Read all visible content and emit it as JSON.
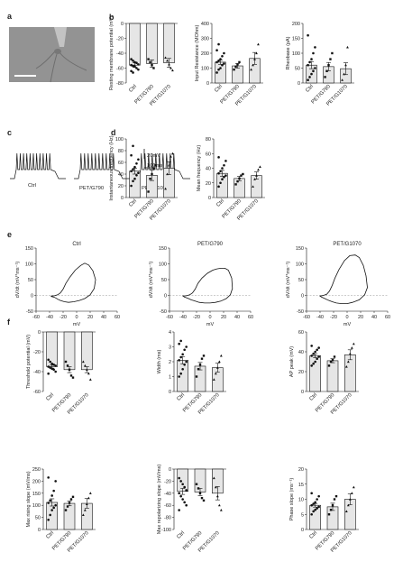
{
  "panel_labels": [
    "a",
    "b",
    "c",
    "d",
    "e",
    "f"
  ],
  "groups": [
    "Ctrl",
    "PET/G790",
    "PET/G1070"
  ],
  "colors": {
    "bar_fill": "#e6e6e6",
    "stroke": "#111111",
    "micrograph": "#8a8a8a"
  },
  "panel_c": {
    "scale_voltage": "20mV",
    "scale_time": "100ms",
    "trace_labels": [
      "Ctrl",
      "PET/G790",
      "PET/G1070"
    ],
    "spike_counts": [
      11,
      10,
      10
    ]
  },
  "chart_data": [
    {
      "id": "b1",
      "panel": "b",
      "type": "bar",
      "categories": [
        "Ctrl",
        "PET/G790",
        "PET/G1070"
      ],
      "ylabel": "Resting membrane potential (mV)",
      "ylim": [
        -80,
        0
      ],
      "yticks": [
        0,
        -20,
        -40,
        -60,
        -80
      ],
      "ytick_labels": [
        "0",
        "-20",
        "-40",
        "-60",
        "-80"
      ],
      "values": [
        -56,
        -54,
        -53
      ],
      "sem": [
        3,
        5,
        6
      ],
      "points": [
        [
          -48,
          -50,
          -52,
          -53,
          -55,
          -56,
          -57,
          -58,
          -60,
          -62,
          -64,
          -66
        ],
        [
          -48,
          -52,
          -56,
          -60
        ],
        [
          -46,
          -50,
          -55,
          -60,
          -63
        ]
      ]
    },
    {
      "id": "b2",
      "panel": "b",
      "type": "bar",
      "categories": [
        "Ctrl",
        "PET/G790",
        "PET/G1070"
      ],
      "ylabel": "Input Resistance (MOhm)",
      "ylim": [
        0,
        400
      ],
      "yticks": [
        0,
        100,
        200,
        300,
        400
      ],
      "ytick_labels": [
        "0",
        "100",
        "200",
        "300",
        "400"
      ],
      "values": [
        140,
        115,
        165
      ],
      "sem": [
        15,
        15,
        40
      ],
      "points": [
        [
          70,
          90,
          100,
          120,
          130,
          140,
          150,
          160,
          180,
          200,
          220,
          260
        ],
        [
          90,
          110,
          125,
          140
        ],
        [
          90,
          120,
          160,
          200,
          260
        ]
      ]
    },
    {
      "id": "b3",
      "panel": "b",
      "type": "bar",
      "categories": [
        "Ctrl",
        "PET/G790",
        "PET/G1070"
      ],
      "ylabel": "Rheobase (pA)",
      "ylim": [
        0,
        200
      ],
      "yticks": [
        0,
        50,
        100,
        150,
        200
      ],
      "ytick_labels": [
        "0",
        "50",
        "100",
        "150",
        "200"
      ],
      "values": [
        60,
        55,
        48
      ],
      "sem": [
        12,
        14,
        20
      ],
      "points": [
        [
          10,
          20,
          30,
          40,
          50,
          60,
          70,
          80,
          100,
          120,
          160
        ],
        [
          20,
          40,
          60,
          80,
          100
        ],
        [
          10,
          30,
          60,
          120
        ]
      ]
    },
    {
      "id": "d1",
      "panel": "d",
      "type": "bar",
      "categories": [
        "Ctrl",
        "PET/G790",
        "PET/G1070"
      ],
      "ylabel": "Instantaneous frequency (Hz)",
      "ylim": [
        0,
        100
      ],
      "yticks": [
        0,
        20,
        40,
        60,
        80,
        100
      ],
      "ytick_labels": [
        "0",
        "20",
        "40",
        "60",
        "80",
        "100"
      ],
      "values": [
        45,
        38,
        50
      ],
      "sem": [
        5,
        9,
        11
      ],
      "points": [
        [
          20,
          28,
          32,
          38,
          42,
          45,
          48,
          52,
          58,
          65,
          72,
          88
        ],
        [
          10,
          32,
          40,
          50,
          55
        ],
        [
          15,
          40,
          55,
          70,
          75
        ]
      ]
    },
    {
      "id": "d2",
      "panel": "d",
      "type": "bar",
      "categories": [
        "Ctrl",
        "PET/G790",
        "PET/G1070"
      ],
      "ylabel": "Mean frequency (Hz)",
      "ylim": [
        0,
        80
      ],
      "yticks": [
        0,
        20,
        40,
        60,
        80
      ],
      "ytick_labels": [
        "0",
        "20",
        "40",
        "60",
        "80"
      ],
      "values": [
        33,
        26,
        30
      ],
      "sem": [
        4,
        3,
        5
      ],
      "points": [
        [
          15,
          20,
          25,
          28,
          30,
          33,
          36,
          40,
          44,
          50,
          55
        ],
        [
          18,
          22,
          26,
          30,
          32
        ],
        [
          15,
          25,
          30,
          38,
          42
        ]
      ]
    },
    {
      "id": "e1",
      "panel": "e",
      "type": "line",
      "title": "Ctrl",
      "xlabel": "mV",
      "ylabel": "dV/dt (mV*ms⁻¹)",
      "xlim": [
        -60,
        60
      ],
      "ylim": [
        -50,
        150
      ],
      "xticks": [
        -60,
        -40,
        -20,
        0,
        20,
        40,
        60
      ],
      "yticks": [
        -50,
        0,
        50,
        100,
        150
      ],
      "x": [
        -38,
        -33,
        -28,
        -24,
        -20,
        -16,
        -10,
        -2,
        6,
        12,
        18,
        24,
        28,
        26,
        20,
        12,
        4,
        -4,
        -12,
        -18,
        -24,
        -28,
        -31,
        -34,
        -38,
        -36
      ],
      "y": [
        -2,
        -1,
        2,
        8,
        20,
        38,
        58,
        80,
        95,
        102,
        96,
        78,
        50,
        22,
        2,
        -10,
        -16,
        -20,
        -22,
        -20,
        -16,
        -12,
        -8,
        -5,
        -3,
        -2
      ]
    },
    {
      "id": "e2",
      "panel": "e",
      "type": "line",
      "title": "PET/G790",
      "xlabel": "mV",
      "ylabel": "dV/dt (mV*ms⁻¹)",
      "xlim": [
        -60,
        60
      ],
      "ylim": [
        -50,
        150
      ],
      "xticks": [
        -60,
        -40,
        -20,
        0,
        20,
        40,
        60
      ],
      "yticks": [
        -50,
        0,
        50,
        100,
        150
      ],
      "x": [
        -40,
        -35,
        -30,
        -26,
        -22,
        -18,
        -12,
        -4,
        4,
        10,
        16,
        22,
        27,
        32,
        33,
        30,
        24,
        16,
        8,
        0,
        -8,
        -16,
        -22,
        -28,
        -33,
        -38,
        -40
      ],
      "y": [
        -2,
        -1,
        2,
        8,
        20,
        38,
        55,
        70,
        80,
        84,
        86,
        86,
        80,
        55,
        22,
        2,
        -10,
        -18,
        -22,
        -24,
        -24,
        -22,
        -18,
        -14,
        -9,
        -5,
        -2
      ]
    },
    {
      "id": "e3",
      "panel": "e",
      "type": "line",
      "title": "PET/G1070",
      "xlabel": "mV",
      "ylabel": "dV/dt (mV*ms⁻¹)",
      "xlim": [
        -60,
        60
      ],
      "ylim": [
        -50,
        150
      ],
      "xticks": [
        -60,
        -40,
        -20,
        0,
        20,
        40,
        60
      ],
      "yticks": [
        -50,
        0,
        50,
        100,
        150
      ],
      "x": [
        -40,
        -35,
        -30,
        -26,
        -22,
        -18,
        -12,
        -4,
        4,
        12,
        18,
        24,
        28,
        30,
        26,
        18,
        8,
        0,
        -8,
        -16,
        -22,
        -28,
        -33,
        -38,
        -40
      ],
      "y": [
        -2,
        0,
        4,
        14,
        32,
        55,
        82,
        110,
        126,
        128,
        120,
        95,
        62,
        25,
        2,
        -14,
        -22,
        -26,
        -26,
        -24,
        -20,
        -15,
        -10,
        -5,
        -2
      ]
    },
    {
      "id": "f1",
      "panel": "f",
      "type": "bar",
      "categories": [
        "Ctrl",
        "PET/G790",
        "PET/G1070"
      ],
      "ylabel": "Threshold potential (mV)",
      "ylim": [
        -60,
        0
      ],
      "yticks": [
        0,
        -20,
        -40,
        -60
      ],
      "ytick_labels": [
        "0",
        "-20",
        "-40",
        "-60"
      ],
      "values": [
        -35,
        -38,
        -38
      ],
      "sem": [
        1.5,
        3,
        3
      ],
      "points": [
        [
          -28,
          -30,
          -32,
          -33,
          -34,
          -35,
          -36,
          -37,
          -38,
          -40,
          -42
        ],
        [
          -30,
          -34,
          -38,
          -44,
          -46
        ],
        [
          -30,
          -34,
          -38,
          -42,
          -48
        ]
      ]
    },
    {
      "id": "f2",
      "panel": "f",
      "type": "bar",
      "categories": [
        "Ctrl",
        "PET/G790",
        "PET/G1070"
      ],
      "ylabel": "Width (ms)",
      "ylim": [
        0,
        4
      ],
      "yticks": [
        0,
        1,
        2,
        3,
        4
      ],
      "ytick_labels": [
        "0",
        "1",
        "2",
        "3",
        "4"
      ],
      "values": [
        2.1,
        1.7,
        1.6
      ],
      "sem": [
        0.25,
        0.25,
        0.3
      ],
      "points": [
        [
          1.0,
          1.2,
          1.5,
          1.8,
          2.0,
          2.1,
          2.3,
          2.5,
          2.8,
          3.0,
          3.2,
          3.4
        ],
        [
          1.0,
          1.5,
          1.8,
          2.2,
          2.4
        ],
        [
          0.8,
          1.2,
          1.6,
          2.0,
          2.4
        ]
      ]
    },
    {
      "id": "f3",
      "panel": "f",
      "type": "bar",
      "categories": [
        "Ctrl",
        "PET/G790",
        "PET/G1070"
      ],
      "ylabel": "AP peak (mV)",
      "ylim": [
        0,
        60
      ],
      "yticks": [
        0,
        20,
        40,
        60
      ],
      "ytick_labels": [
        "0",
        "20",
        "40",
        "60"
      ],
      "values": [
        36,
        31,
        37
      ],
      "sem": [
        2,
        2,
        5
      ],
      "points": [
        [
          26,
          28,
          30,
          33,
          35,
          36,
          38,
          40,
          42,
          44,
          46
        ],
        [
          26,
          30,
          32,
          35
        ],
        [
          25,
          30,
          38,
          44,
          48
        ]
      ]
    },
    {
      "id": "f4",
      "panel": "f",
      "type": "bar",
      "categories": [
        "Ctrl",
        "PET/G790",
        "PET/G1070"
      ],
      "ylabel": "Max rising slope (mV/ms)",
      "ylim": [
        0,
        250
      ],
      "yticks": [
        0,
        50,
        100,
        150,
        200,
        250
      ],
      "ytick_labels": [
        "0",
        "50",
        "100",
        "150",
        "200",
        "250"
      ],
      "values": [
        112,
        108,
        108
      ],
      "sem": [
        15,
        10,
        20
      ],
      "points": [
        [
          40,
          60,
          80,
          90,
          100,
          110,
          120,
          140,
          160,
          200,
          215
        ],
        [
          80,
          95,
          110,
          125,
          135
        ],
        [
          60,
          80,
          105,
          130,
          150
        ]
      ]
    },
    {
      "id": "f5",
      "panel": "f",
      "type": "bar",
      "categories": [
        "Ctrl",
        "PET/G790",
        "PET/G1070"
      ],
      "ylabel": "Max repolarizing slope (mV/ms)",
      "ylim": [
        -100,
        0
      ],
      "yticks": [
        0,
        -20,
        -40,
        -60,
        -80,
        -100
      ],
      "ytick_labels": [
        "0",
        "-20",
        "-40",
        "-60",
        "-80",
        "-100"
      ],
      "values": [
        -37,
        -38,
        -40
      ],
      "sem": [
        5,
        6,
        11
      ],
      "points": [
        [
          -15,
          -20,
          -25,
          -30,
          -35,
          -40,
          -45,
          -50,
          -55,
          -60,
          -68
        ],
        [
          -25,
          -32,
          -40,
          -48,
          -52
        ],
        [
          -15,
          -30,
          -45,
          -60,
          -68
        ]
      ]
    },
    {
      "id": "f6",
      "panel": "f",
      "type": "bar",
      "categories": [
        "Ctrl",
        "PET/G790",
        "PET/G1070"
      ],
      "ylabel": "Phase slope (ms⁻¹)",
      "ylim": [
        0,
        20
      ],
      "yticks": [
        0,
        5,
        10,
        15,
        20
      ],
      "ytick_labels": [
        "0",
        "5",
        "10",
        "15",
        "20"
      ],
      "values": [
        8,
        7.5,
        10
      ],
      "sem": [
        0.6,
        1.2,
        1.8
      ],
      "points": [
        [
          5,
          6,
          6.5,
          7,
          7.5,
          8,
          8.5,
          9,
          10,
          11,
          12
        ],
        [
          5,
          6.5,
          8,
          10,
          11
        ],
        [
          6,
          8,
          10,
          12,
          14
        ]
      ]
    }
  ]
}
